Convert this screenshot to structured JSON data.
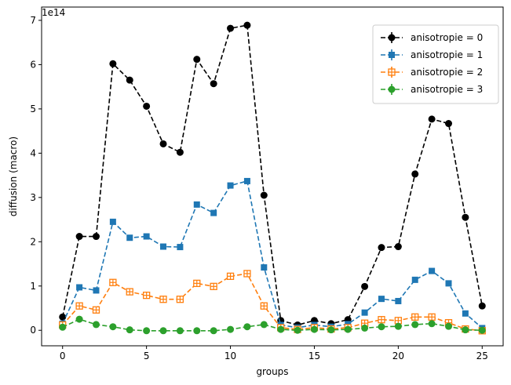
{
  "chart_data": {
    "type": "line",
    "title": "",
    "xlabel": "groups",
    "ylabel": "diffusion (macro)",
    "y_offset_label": "1e14",
    "xlim": [
      -1.25,
      26.25
    ],
    "ylim": [
      -0.35,
      7.3
    ],
    "x_ticks": [
      0,
      5,
      10,
      15,
      20,
      25
    ],
    "y_ticks": [
      0,
      1,
      2,
      3,
      4,
      5,
      6,
      7
    ],
    "grid": false,
    "legend_position": "top-right",
    "x": [
      0,
      1,
      2,
      3,
      4,
      5,
      6,
      7,
      8,
      9,
      10,
      11,
      12,
      13,
      14,
      15,
      16,
      17,
      18,
      19,
      20,
      21,
      22,
      23,
      24,
      25
    ],
    "series": [
      {
        "name": "anisotropie = 0",
        "color": "#000000",
        "marker": "circle",
        "values": [
          0.3,
          2.12,
          2.12,
          6.02,
          5.65,
          5.06,
          4.21,
          4.02,
          6.12,
          5.57,
          6.82,
          6.89,
          3.05,
          0.22,
          0.12,
          0.22,
          0.15,
          0.24,
          0.99,
          1.87,
          1.89,
          3.53,
          4.77,
          4.67,
          2.55,
          0.55
        ]
      },
      {
        "name": "anisotropie = 1",
        "color": "#1f77b4",
        "marker": "square",
        "values": [
          0.15,
          0.97,
          0.9,
          2.45,
          2.09,
          2.12,
          1.89,
          1.88,
          2.84,
          2.65,
          3.27,
          3.37,
          1.42,
          0.12,
          0.06,
          0.12,
          0.08,
          0.14,
          0.4,
          0.71,
          0.66,
          1.14,
          1.34,
          1.06,
          0.38,
          0.05
        ]
      },
      {
        "name": "anisotropie = 2",
        "color": "#ff7f0e",
        "marker": "plus-filled-square",
        "values": [
          0.12,
          0.55,
          0.46,
          1.08,
          0.87,
          0.79,
          0.7,
          0.7,
          1.06,
          0.99,
          1.22,
          1.28,
          0.55,
          0.06,
          0.02,
          0.06,
          0.03,
          0.06,
          0.16,
          0.24,
          0.22,
          0.3,
          0.3,
          0.17,
          0.03,
          -0.01
        ]
      },
      {
        "name": "anisotropie = 3",
        "color": "#2ca02c",
        "marker": "circle",
        "values": [
          0.07,
          0.25,
          0.13,
          0.08,
          0.01,
          -0.01,
          -0.01,
          -0.01,
          -0.01,
          -0.01,
          0.02,
          0.08,
          0.13,
          0.02,
          0.0,
          0.02,
          0.01,
          0.02,
          0.05,
          0.08,
          0.09,
          0.13,
          0.15,
          0.09,
          0.01,
          0.0
        ]
      }
    ]
  }
}
